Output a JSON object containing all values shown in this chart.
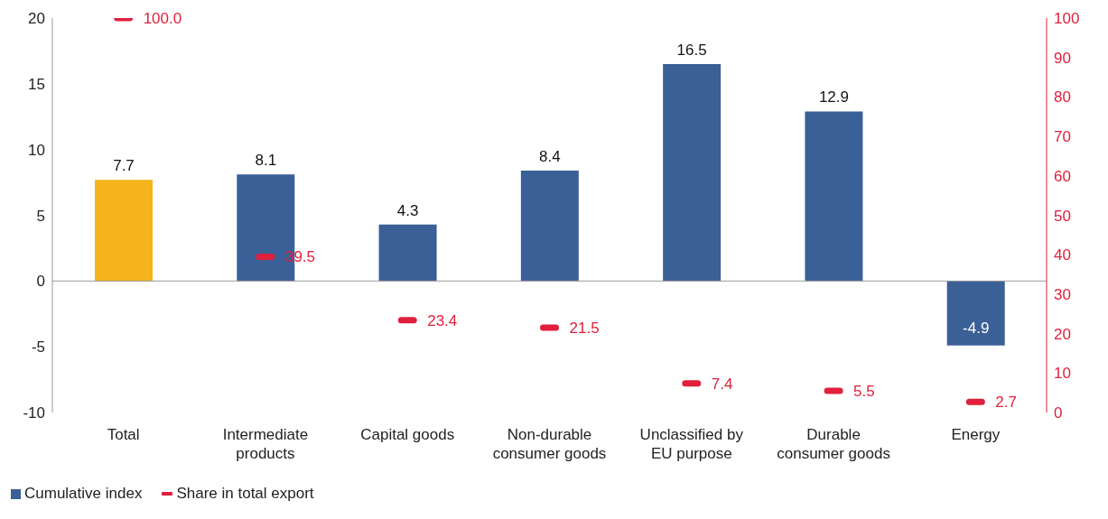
{
  "chart_data": {
    "type": "bar",
    "categories": [
      "Total",
      "Intermediate products",
      "Capital goods",
      "Non-durable consumer goods",
      "Unclassified by EU purpose",
      "Durable consumer goods",
      "Energy"
    ],
    "series": [
      {
        "name": "Cumulative index",
        "color": "#3b5f97",
        "colors": [
          "#f4b41a",
          "#3b5f97",
          "#3b5f97",
          "#3b5f97",
          "#3b5f97",
          "#3b5f97",
          "#3b5f97"
        ],
        "values": [
          7.7,
          8.1,
          4.3,
          8.4,
          16.5,
          12.9,
          -4.9
        ],
        "value_labels": [
          "7.7",
          "8.1",
          "4.3",
          "8.4",
          "16.5",
          "12.9",
          "-4.9"
        ]
      },
      {
        "name": "Share in total export",
        "type": "scatter",
        "axis": "y2",
        "color": "#e0203c",
        "values": [
          100.0,
          39.5,
          23.4,
          21.5,
          7.4,
          5.5,
          2.7
        ],
        "value_labels": [
          "100.0",
          "39.5",
          "23.4",
          "21.5",
          "7.4",
          "5.5",
          "2.7"
        ]
      }
    ],
    "ylim": [
      -10,
      20
    ],
    "yticks": [
      -10,
      -5,
      0,
      5,
      10,
      15,
      20
    ],
    "y2lim": [
      0,
      100
    ],
    "y2ticks": [
      0,
      10,
      20,
      30,
      40,
      50,
      60,
      70,
      80,
      90,
      100
    ],
    "legend": "bottom left"
  }
}
